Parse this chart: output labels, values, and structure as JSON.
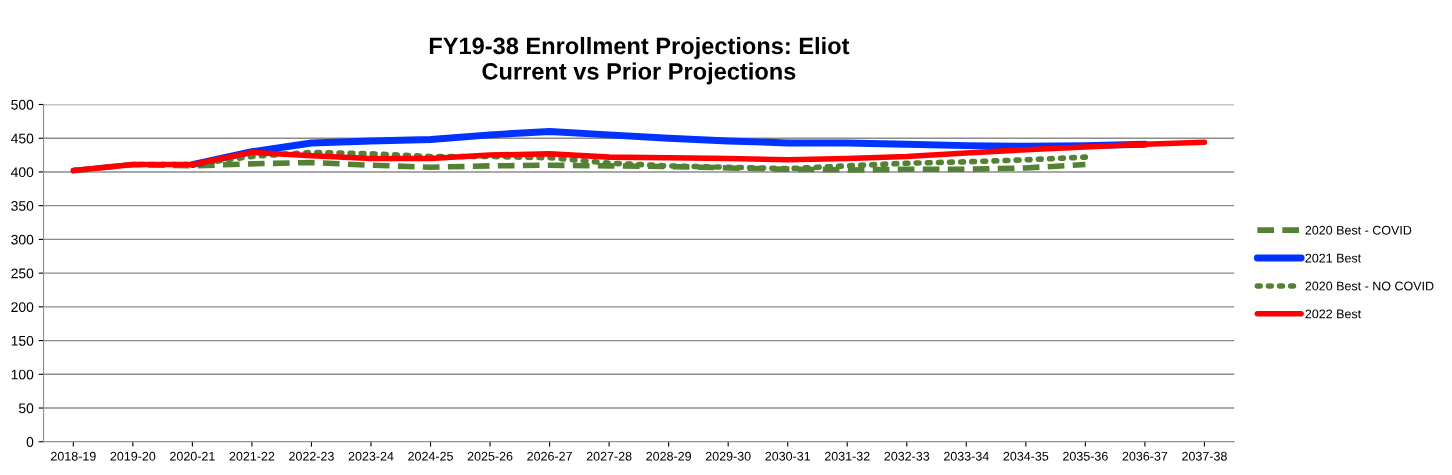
{
  "chart_data": {
    "type": "line",
    "title": "FY19-38 Enrollment Projections: Eliot\nCurrent vs Prior Projections",
    "categories": [
      "2018-19",
      "2019-20",
      "2020-21",
      "2021-22",
      "2022-23",
      "2023-24",
      "2024-25",
      "2025-26",
      "2026-27",
      "2027-28",
      "2028-29",
      "2029-30",
      "2030-31",
      "2031-32",
      "2032-33",
      "2033-34",
      "2034-35",
      "2035-36",
      "2036-37",
      "2037-38"
    ],
    "series": [
      {
        "name": "2020 Best - COVID",
        "color": "#548235",
        "line_style": "dashed",
        "values": [
          402,
          411,
          409,
          412,
          414,
          410,
          407,
          409,
          410,
          409,
          408,
          406,
          404,
          403,
          404,
          404,
          406,
          411,
          null,
          null
        ]
      },
      {
        "name": "2021 Best",
        "color": "#0033ff",
        "line_style": "solid",
        "values": [
          null,
          null,
          411,
          430,
          443,
          446,
          448,
          455,
          460,
          455,
          450,
          446,
          443,
          443,
          441,
          439,
          438,
          439,
          441,
          null
        ]
      },
      {
        "name": "2020 Best - NO COVID",
        "color": "#548235",
        "line_style": "dotted",
        "values": [
          402,
          411,
          411,
          423,
          429,
          427,
          423,
          423,
          421,
          413,
          409,
          407,
          405,
          409,
          413,
          415,
          418,
          422,
          null,
          null
        ]
      },
      {
        "name": "2022 Best",
        "color": "#ff0000",
        "line_style": "solid",
        "values": [
          402,
          411,
          411,
          429,
          424,
          420,
          420,
          425,
          427,
          422,
          421,
          420,
          418,
          420,
          423,
          428,
          433,
          437,
          441,
          444
        ]
      }
    ],
    "ylim": [
      0,
      500
    ],
    "yticks": [
      0,
      50,
      100,
      150,
      200,
      250,
      300,
      350,
      400,
      450,
      500
    ],
    "grid": "y",
    "legend": "right",
    "marker": "none"
  }
}
